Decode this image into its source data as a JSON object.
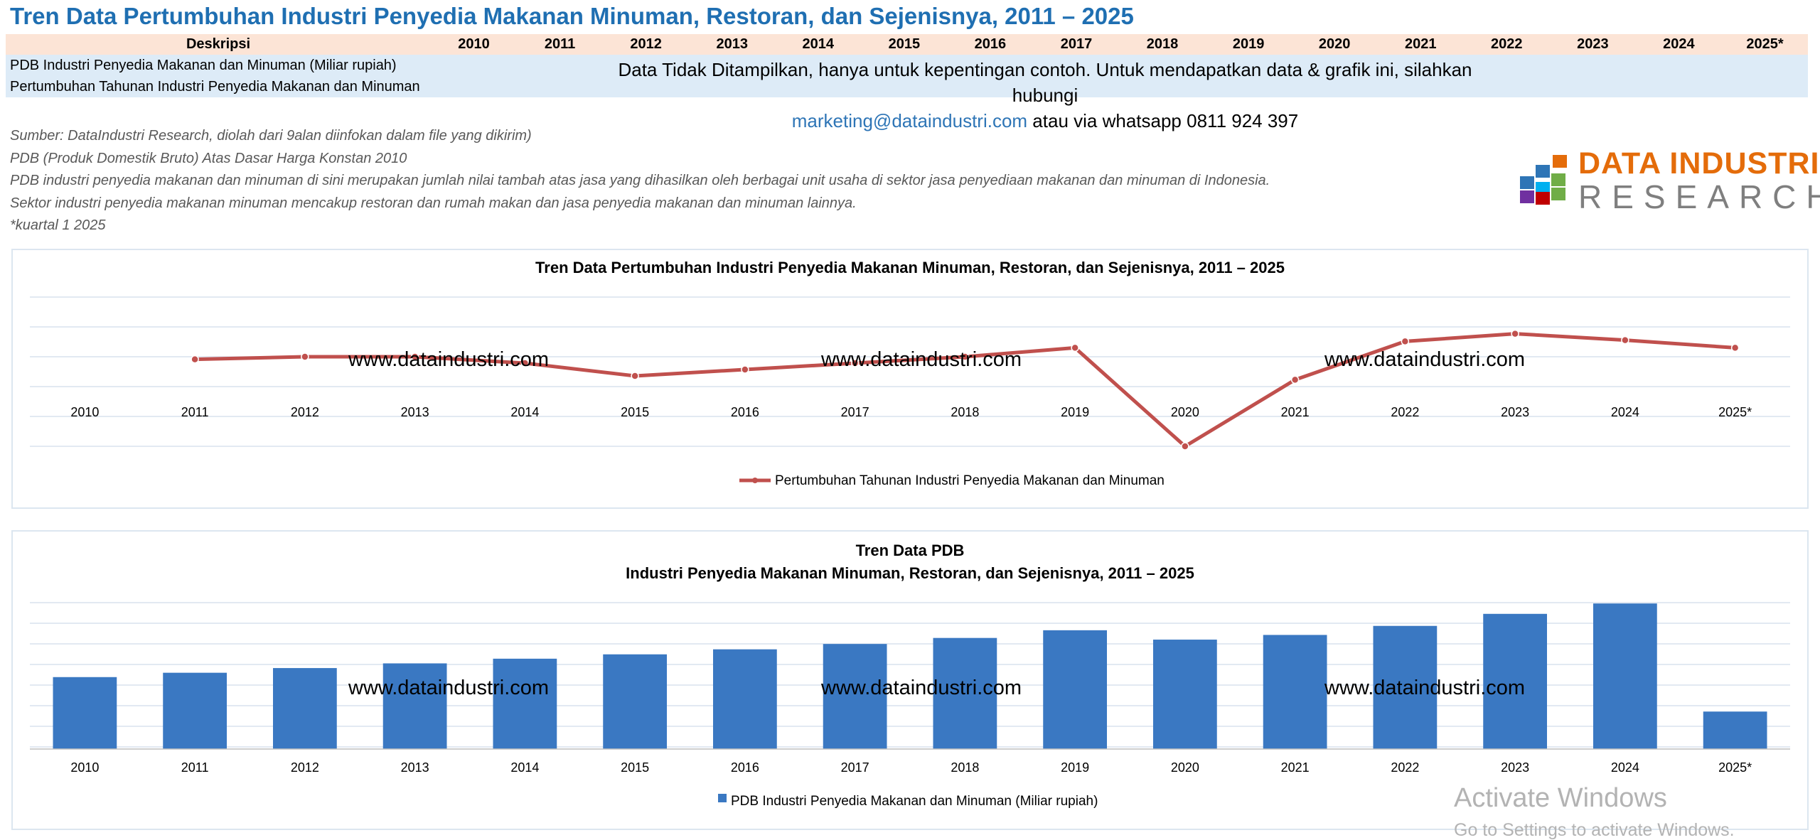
{
  "page": {
    "title": "Tren Data Pertumbuhan Industri Penyedia Makanan Minuman, Restoran, dan Sejenisnya, 2011 – 2025"
  },
  "table": {
    "header_desc": "Deskripsi",
    "years": [
      "2010",
      "2011",
      "2012",
      "2013",
      "2014",
      "2015",
      "2016",
      "2017",
      "2018",
      "2019",
      "2020",
      "2021",
      "2022",
      "2023",
      "2024",
      "2025*"
    ],
    "rows": [
      "PDB Industri Penyedia Makanan dan Minuman (Miliar rupiah)",
      "Pertumbuhan Tahunan Industri Penyedia Makanan dan Minuman"
    ],
    "notice_line1": "Data Tidak Ditampilkan, hanya untuk kepentingan contoh. Untuk mendapatkan data & grafik  ini, silahkan hubungi",
    "notice_email": "marketing@dataindustri.com",
    "notice_rest": " atau via whatsapp 0811 924 397"
  },
  "notes": [
    "Sumber: DataIndustri Research, diolah dari 9alan diinfokan dalam file yang dikirim)",
    "PDB (Produk Domestik Bruto) Atas Dasar Harga Konstan 2010",
    "PDB industri penyedia makanan dan minuman di sini merupakan jumlah nilai tambah atas jasa yang dihasilkan oleh berbagai unit usaha di sektor jasa penyediaan makanan dan minuman di Indonesia.",
    "Sektor industri penyedia makanan minuman mencakup restoran dan rumah makan dan jasa penyedia makanan dan minuman lainnya.",
    "*kuartal 1 2025"
  ],
  "logo": {
    "line1": "DATA INDUSTRI",
    "line2": "RESEARCH",
    "colors": [
      "#E46C0A",
      "#2E75B6",
      "#70AD47",
      "#7030A0",
      "#C00000",
      "#00B0F0"
    ]
  },
  "watermark": "www.dataindustri.com",
  "activate": {
    "line1": "Activate Windows",
    "line2": "Go to Settings to activate Windows."
  },
  "chart_data": [
    {
      "type": "line",
      "title": "Tren Data Pertumbuhan Industri Penyedia Makanan Minuman, Restoran, dan Sejenisnya, 2011 – 2025",
      "categories": [
        "2010",
        "2011",
        "2012",
        "2013",
        "2014",
        "2015",
        "2016",
        "2017",
        "2018",
        "2019",
        "2020",
        "2021",
        "2022",
        "2023",
        "2024",
        "2025*"
      ],
      "series": [
        {
          "name": "Pertumbuhan Tahunan Industri Penyedia Makanan dan Minuman",
          "color": "#C0504D",
          "values": [
            null,
            5.8,
            6.0,
            6.0,
            5.5,
            4.5,
            5.0,
            5.5,
            6.0,
            6.7,
            -1.0,
            4.2,
            7.2,
            7.8,
            7.3,
            6.7
          ]
        }
      ],
      "legend": "bottom",
      "grid": true,
      "y_axis_labels": false
    },
    {
      "type": "bar",
      "title": "Tren Data PDB",
      "subtitle": "Industri Penyedia Makanan Minuman, Restoran, dan Sejenisnya, 2011 – 2025",
      "categories": [
        "2010",
        "2011",
        "2012",
        "2013",
        "2014",
        "2015",
        "2016",
        "2017",
        "2018",
        "2019",
        "2020",
        "2021",
        "2022",
        "2023",
        "2024",
        "2025*"
      ],
      "series": [
        {
          "name": "PDB Industri Penyedia Makanan dan Minuman (Miliar rupiah)",
          "color": "#3A78C2",
          "values": [
            215,
            228,
            242,
            256,
            270,
            283,
            298,
            314,
            332,
            355,
            327,
            341,
            368,
            404,
            435,
            112
          ]
        }
      ],
      "legend": "bottom",
      "grid": true,
      "y_axis_labels": false
    }
  ]
}
